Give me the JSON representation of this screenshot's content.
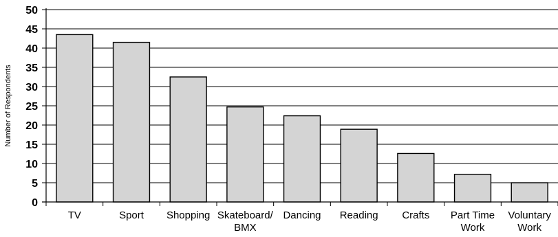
{
  "chart_data": {
    "type": "bar",
    "title": "",
    "xlabel": "",
    "ylabel": "Number of Respondents",
    "ylim": [
      0,
      50
    ],
    "yticks": [
      0,
      5,
      10,
      15,
      20,
      25,
      30,
      35,
      40,
      45,
      50
    ],
    "grid": true,
    "categories": [
      [
        "TV"
      ],
      [
        "Sport"
      ],
      [
        "Shopping"
      ],
      [
        "Skateboard/",
        "BMX"
      ],
      [
        "Dancing"
      ],
      [
        "Reading"
      ],
      [
        "Crafts"
      ],
      [
        "Part Time",
        "Work"
      ],
      [
        "Voluntary",
        "Work"
      ]
    ],
    "values": [
      43.5,
      41.5,
      32.5,
      24.7,
      22.4,
      18.9,
      12.6,
      7.2,
      5.0
    ],
    "bar_color": "#d4d4d4",
    "bar_stroke": "#000000",
    "grid_color": "#000000"
  }
}
